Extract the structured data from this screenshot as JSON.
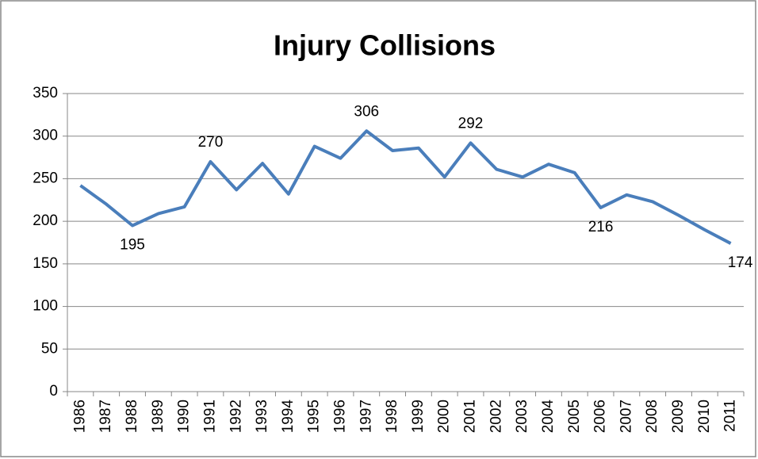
{
  "chart_data": {
    "type": "line",
    "title": "Injury Collisions",
    "categories": [
      "1986",
      "1987",
      "1988",
      "1989",
      "1990",
      "1991",
      "1992",
      "1993",
      "1994",
      "1995",
      "1996",
      "1997",
      "1998",
      "1999",
      "2000",
      "2001",
      "2002",
      "2003",
      "2004",
      "2005",
      "2006",
      "2007",
      "2008",
      "2009",
      "2010",
      "2011"
    ],
    "series": [
      {
        "name": "Injury Collisions",
        "color": "#4a7ebb",
        "values": [
          242,
          220,
          195,
          209,
          217,
          270,
          237,
          268,
          232,
          288,
          274,
          306,
          283,
          286,
          252,
          292,
          261,
          252,
          267,
          257,
          216,
          231,
          223,
          207,
          190,
          174
        ],
        "value_labels": [
          null,
          null,
          "195",
          null,
          null,
          "270",
          null,
          null,
          null,
          null,
          null,
          "306",
          null,
          null,
          null,
          "292",
          null,
          null,
          null,
          null,
          "216",
          null,
          null,
          null,
          null,
          "174"
        ]
      }
    ],
    "ylim": [
      0,
      350
    ],
    "yticks": [
      0,
      50,
      100,
      150,
      200,
      250,
      300,
      350
    ],
    "grid": true,
    "legend": false
  }
}
